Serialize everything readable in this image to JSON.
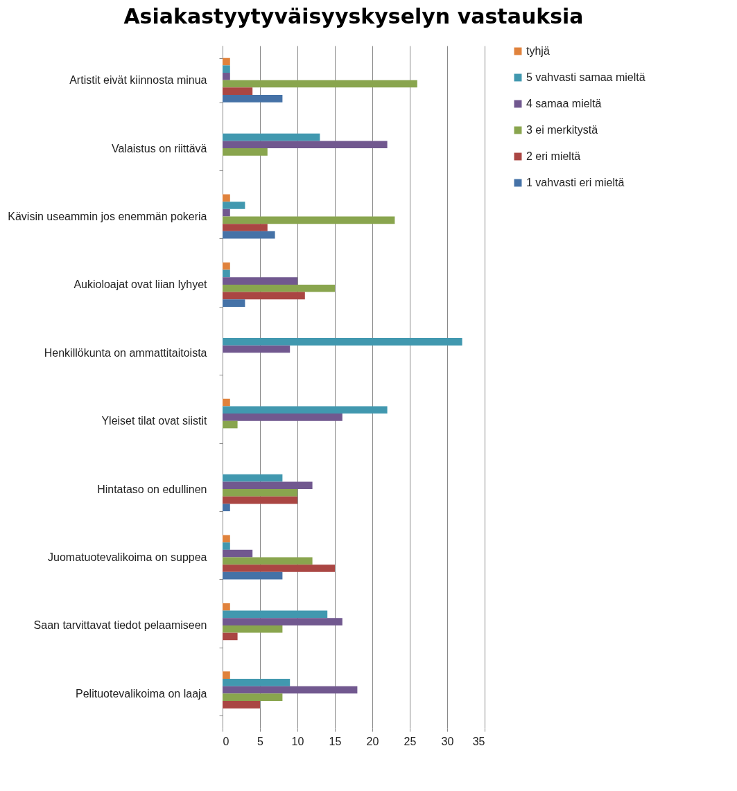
{
  "chart_data": {
    "type": "bar",
    "orientation": "horizontal",
    "title": "Asiakastyytyväisyyskyselyn vastauksia",
    "categories": [
      "Artistit eivät kiinnosta minua",
      "Valaistus on riittävä",
      "Kävisin useammin jos enemmän pokeria",
      "Aukioloajat ovat liian lyhyet",
      "Henkillökunta on ammattitaitoista",
      "Yleiset tilat ovat siistit",
      "Hintataso on edullinen",
      "Juomatuotevalikoima on suppea",
      "Saan  tarvittavat tiedot pelaamiseen",
      "Pelituotevalikoima on  laaja"
    ],
    "series": [
      {
        "name": "tyhjä",
        "color": "#e0823c",
        "values": [
          1,
          null,
          1,
          1,
          null,
          1,
          null,
          1,
          1,
          1
        ]
      },
      {
        "name": "5 vahvasti samaa mieltä",
        "color": "#4198af",
        "values": [
          1,
          13,
          3,
          1,
          32,
          22,
          8,
          1,
          14,
          9
        ]
      },
      {
        "name": "4 samaa mieltä",
        "color": "#71588f",
        "values": [
          1,
          22,
          1,
          10,
          9,
          16,
          12,
          4,
          16,
          18
        ]
      },
      {
        "name": "3 ei merkitystä",
        "color": "#89a54e",
        "values": [
          26,
          6,
          23,
          15,
          null,
          2,
          10,
          12,
          8,
          8
        ]
      },
      {
        "name": "2 eri mieltä",
        "color": "#aa4643",
        "values": [
          4,
          null,
          6,
          11,
          null,
          null,
          10,
          15,
          2,
          5
        ]
      },
      {
        "name": "1 vahvasti eri mieltä",
        "color": "#4572a7",
        "values": [
          8,
          null,
          7,
          3,
          null,
          null,
          1,
          8,
          null,
          null
        ]
      }
    ],
    "xlim": [
      0,
      35
    ],
    "xticks": [
      0,
      5,
      10,
      15,
      20,
      25,
      30,
      35
    ],
    "grid": "x",
    "legend": "right"
  }
}
